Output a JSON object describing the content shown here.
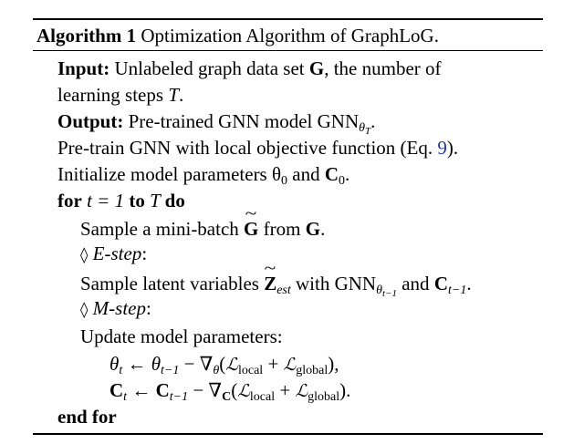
{
  "algorithm": {
    "label": "Algorithm 1",
    "title": "Optimization Algorithm of GraphLoG.",
    "input_label": "Input:",
    "input_text_1": "Unlabeled graph data set ",
    "input_G": "G",
    "input_text_2": ", the number of",
    "input_text_3": "learning steps ",
    "input_T": "T",
    "input_text_4": ".",
    "output_label": "Output:",
    "output_text": "Pre-trained GNN model GNN",
    "output_sub_theta": "θ",
    "output_sub_T": "T",
    "output_end": ".",
    "pretrain_text": "Pre-train GNN with local objective function (Eq. ",
    "pretrain_ref": "9",
    "pretrain_end": ").",
    "init_text": "Initialize model parameters θ",
    "init_sub0": "0",
    "init_and": " and ",
    "init_C": "C",
    "init_sub0b": "0",
    "init_end": ".",
    "for_kw": "for",
    "for_var": " t = 1 ",
    "to_kw": "to",
    "for_T": " T ",
    "do_kw": "do",
    "sample_text": "Sample a mini-batch ",
    "sample_Gt": "G",
    "sample_from": " from ",
    "sample_G": "G",
    "sample_end": ".",
    "diamond": "◊",
    "estep": "E-step",
    "colon": ":",
    "latent_text": "Sample latent variables ",
    "latent_Z": "Z",
    "latent_sub": "est",
    "latent_with": " with GNN",
    "latent_sub_theta": "θ",
    "latent_sub_t1": "t−1",
    "latent_and": " and ",
    "latent_C": "C",
    "latent_sub_C": "t−1",
    "latent_end": ".",
    "mstep": "M-step",
    "update_text": "Update model parameters:",
    "eq1_lhs": "θ",
    "eq1_t": "t",
    "eq1_arrow": " ← θ",
    "eq1_t1": "t−1",
    "eq1_minus": " − ∇",
    "eq1_theta": "θ",
    "eq1_open": "(",
    "eq1_L": "ℒ",
    "eq1_local": "local",
    "eq1_plus": " + ",
    "eq1_L2": "ℒ",
    "eq1_global": "global",
    "eq1_close": "),",
    "eq2_C": "C",
    "eq2_t": "t",
    "eq2_arrow": " ← ",
    "eq2_C2": "C",
    "eq2_t1": "t−1",
    "eq2_minus": " − ∇",
    "eq2_Csub": "C",
    "eq2_open": "(",
    "eq2_L": "ℒ",
    "eq2_local": "local",
    "eq2_plus": " + ",
    "eq2_L2": "ℒ",
    "eq2_global": "global",
    "eq2_close": ").",
    "endfor_kw": "end for"
  }
}
